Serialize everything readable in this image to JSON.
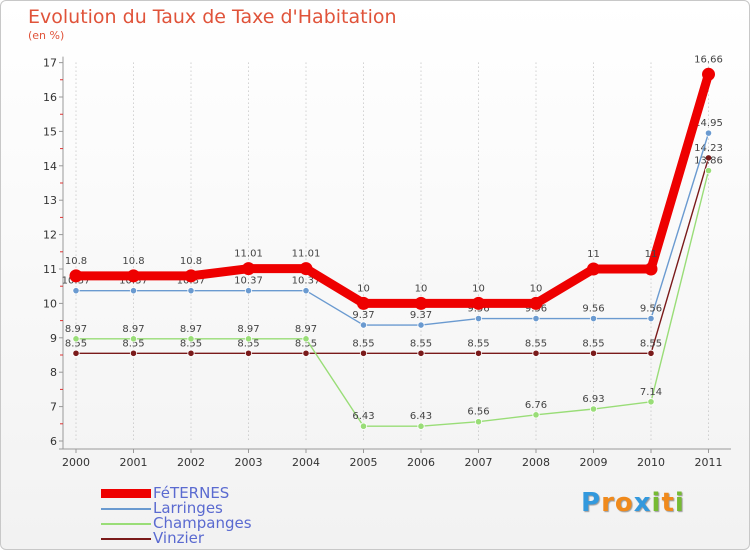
{
  "title": "Evolution du Taux de Taxe d'Habitation",
  "subtitle": "(en %)",
  "chart_data": {
    "type": "line",
    "title": "Evolution du Taux de Taxe d'Habitation",
    "ylabel": "(en %)",
    "xlabel": "",
    "ylim": [
      6,
      17
    ],
    "yticks": [
      6,
      7,
      8,
      9,
      10,
      11,
      12,
      13,
      14,
      15,
      16,
      17
    ],
    "categories": [
      "2000",
      "2001",
      "2002",
      "2003",
      "2004",
      "2005",
      "2006",
      "2007",
      "2008",
      "2009",
      "2010",
      "2011"
    ],
    "series": [
      {
        "name": "Vinzier",
        "color": "#7a1a1a",
        "values": [
          8.55,
          8.55,
          8.55,
          8.55,
          8.55,
          8.55,
          8.55,
          8.55,
          8.55,
          8.55,
          8.55,
          14.23
        ]
      },
      {
        "name": "Champanges",
        "color": "#99dd77",
        "values": [
          8.97,
          8.97,
          8.97,
          8.97,
          8.97,
          6.43,
          6.43,
          6.56,
          6.76,
          6.93,
          7.14,
          13.86
        ]
      },
      {
        "name": "Larringes",
        "color": "#6a9ad0",
        "values": [
          10.37,
          10.37,
          10.37,
          10.37,
          10.37,
          9.37,
          9.37,
          9.56,
          9.56,
          9.56,
          9.56,
          14.95
        ]
      },
      {
        "name": "FéTERNES",
        "color": "#ee0000",
        "values": [
          10.8,
          10.8,
          10.8,
          11.01,
          11.01,
          10,
          10,
          10,
          10,
          11,
          11,
          16.66
        ]
      }
    ],
    "data_labels": {
      "Vinzier": [
        "8.55",
        "8.55",
        "8.55",
        "8.55",
        "8.55",
        "8.55",
        "8.55",
        "8.55",
        "8.55",
        "8.55",
        "8.55",
        "14.23"
      ],
      "Champanges": [
        "8.97",
        "8.97",
        "8.97",
        "8.97",
        "8.97",
        "6.43",
        "6.43",
        "6.56",
        "6.76",
        "6.93",
        "7.14",
        "13.86"
      ],
      "Larringes": [
        "10.37",
        "10.37",
        "10.37",
        "10.37",
        "10.37",
        "9.37",
        "9.37",
        "9.56",
        "9.56",
        "9.56",
        "9.56",
        "14.95"
      ],
      "FéTERNES": [
        "10.8",
        "10.8",
        "10.8",
        "11.01",
        "11.01",
        "10",
        "10",
        "10",
        "10",
        "11",
        "11",
        "16.66"
      ]
    },
    "legend": [
      "FéTERNES",
      "Larringes",
      "Champanges",
      "Vinzier"
    ],
    "legend_position": "bottom-left",
    "grid": "vertical-dotted"
  },
  "logo": {
    "letters": [
      "P",
      "r",
      "o",
      "x",
      "i",
      "t",
      "i"
    ],
    "colors": [
      "#3399dd",
      "#f08a1c",
      "#f08a1c",
      "#3399dd",
      "#77bb33",
      "#f08a1c",
      "#77bb33"
    ]
  }
}
